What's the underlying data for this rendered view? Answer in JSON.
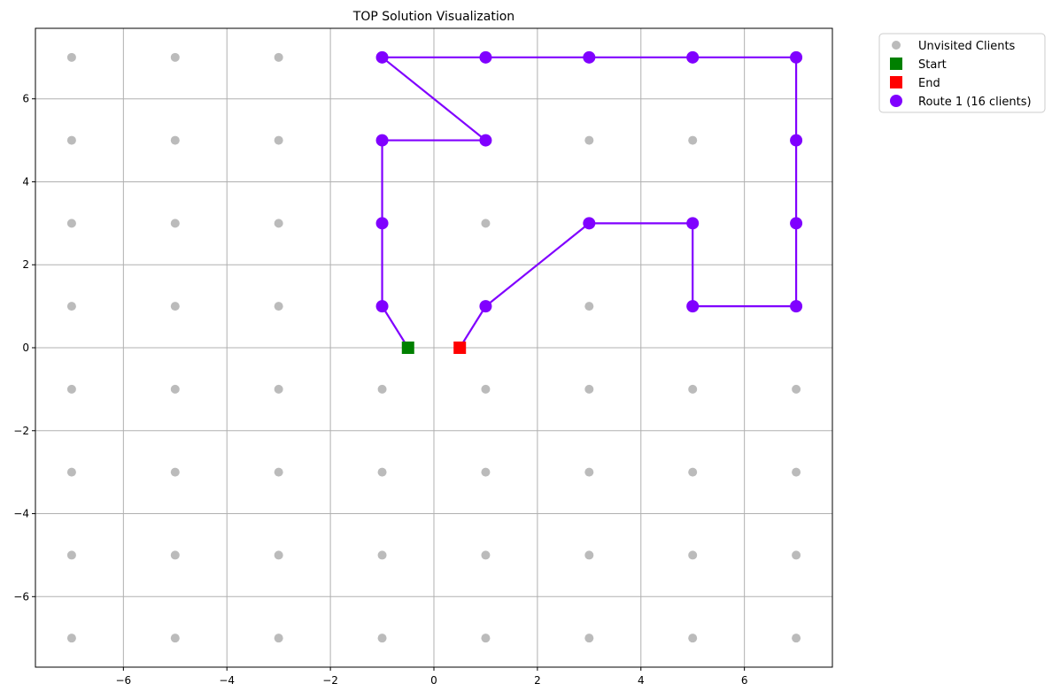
{
  "chart_data": {
    "type": "scatter",
    "title": "TOP Solution Visualization",
    "xlabel": "",
    "ylabel": "",
    "xlim": [
      -7.7,
      7.7
    ],
    "ylim": [
      -7.7,
      7.7
    ],
    "grid": true,
    "x_ticks": [
      -6,
      -4,
      -2,
      0,
      2,
      4,
      6
    ],
    "y_ticks": [
      -6,
      -4,
      -2,
      0,
      2,
      4,
      6
    ],
    "legend_position": "upper-right-outside",
    "colors": {
      "unvisited": "#aaaaaa",
      "start": "#008000",
      "end": "#ff0000",
      "route": "#8000ff",
      "grid": "#b0b0b0"
    },
    "series": [
      {
        "name": "Unvisited Clients",
        "kind": "points",
        "points": [
          [
            -7,
            7
          ],
          [
            -5,
            7
          ],
          [
            -3,
            7
          ],
          [
            -7,
            5
          ],
          [
            -5,
            5
          ],
          [
            -3,
            5
          ],
          [
            3,
            5
          ],
          [
            5,
            5
          ],
          [
            -7,
            3
          ],
          [
            -5,
            3
          ],
          [
            -3,
            3
          ],
          [
            1,
            3
          ],
          [
            -7,
            1
          ],
          [
            -5,
            1
          ],
          [
            -3,
            1
          ],
          [
            3,
            1
          ],
          [
            -7,
            -1
          ],
          [
            -5,
            -1
          ],
          [
            -3,
            -1
          ],
          [
            -1,
            -1
          ],
          [
            1,
            -1
          ],
          [
            3,
            -1
          ],
          [
            5,
            -1
          ],
          [
            7,
            -1
          ],
          [
            -7,
            -3
          ],
          [
            -5,
            -3
          ],
          [
            -3,
            -3
          ],
          [
            -1,
            -3
          ],
          [
            1,
            -3
          ],
          [
            3,
            -3
          ],
          [
            5,
            -3
          ],
          [
            7,
            -3
          ],
          [
            -7,
            -5
          ],
          [
            -5,
            -5
          ],
          [
            -3,
            -5
          ],
          [
            -1,
            -5
          ],
          [
            1,
            -5
          ],
          [
            3,
            -5
          ],
          [
            5,
            -5
          ],
          [
            7,
            -5
          ],
          [
            -7,
            -7
          ],
          [
            -5,
            -7
          ],
          [
            -3,
            -7
          ],
          [
            -1,
            -7
          ],
          [
            1,
            -7
          ],
          [
            3,
            -7
          ],
          [
            5,
            -7
          ],
          [
            7,
            -7
          ]
        ]
      },
      {
        "name": "Start",
        "kind": "point",
        "points": [
          [
            -0.5,
            0
          ]
        ]
      },
      {
        "name": "End",
        "kind": "point",
        "points": [
          [
            0.5,
            0
          ]
        ]
      },
      {
        "name": "Route 1 (16 clients)",
        "kind": "route",
        "points": [
          [
            -0.5,
            0
          ],
          [
            -1,
            1
          ],
          [
            -1,
            3
          ],
          [
            -1,
            5
          ],
          [
            1,
            5
          ],
          [
            -1,
            7
          ],
          [
            1,
            7
          ],
          [
            3,
            7
          ],
          [
            5,
            7
          ],
          [
            7,
            7
          ],
          [
            7,
            5
          ],
          [
            7,
            3
          ],
          [
            7,
            1
          ],
          [
            5,
            1
          ],
          [
            5,
            3
          ],
          [
            3,
            3
          ],
          [
            1,
            1
          ],
          [
            0.5,
            0
          ]
        ]
      }
    ]
  }
}
